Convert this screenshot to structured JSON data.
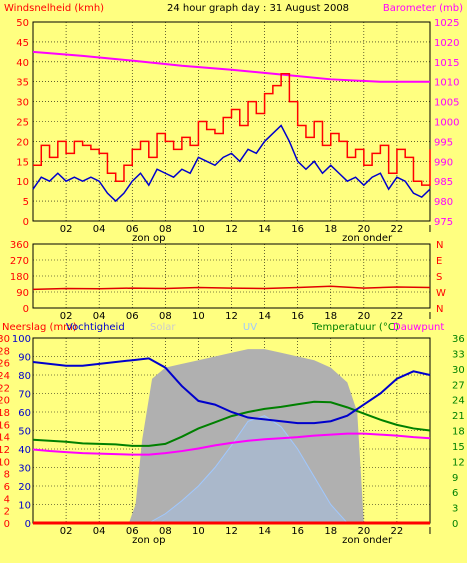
{
  "colors": {
    "background": "#ffff80",
    "plot": "#ffff80",
    "wind_max": "#ff0000",
    "wind_avg": "#0000cc",
    "barometer": "#ff00ff",
    "direction": "#e00000",
    "humidity": "#0000cc",
    "temperature": "#008000",
    "dewpoint": "#ff00ff",
    "solar": "#b0b0b0",
    "uv": "#a0c8ff",
    "rain": "#ff0000"
  },
  "chart_data": [
    {
      "type": "line",
      "title": "24 hour graph day : 31 August 2008",
      "left_axis_label": "Windsnelheid (kmh)",
      "right_axis_label": "Barometer (mb)",
      "left_ticks": [
        "0",
        "5",
        "10",
        "15",
        "20",
        "25",
        "30",
        "35",
        "40",
        "45",
        "50"
      ],
      "right_ticks": [
        "975",
        "980",
        "985",
        "990",
        "995",
        "1000",
        "1005",
        "1010",
        "1015",
        "1020",
        "1025"
      ],
      "ylim_left": [
        0,
        50
      ],
      "ylim_right": [
        975,
        1025
      ],
      "x_ticks": [
        "02",
        "04",
        "06",
        "08",
        "10",
        "12",
        "14",
        "16",
        "18",
        "20",
        "22",
        "I"
      ],
      "annotations": [
        "zon op",
        "zon onder"
      ],
      "series": [
        {
          "key": "wind_max",
          "axis": "left",
          "x": [
            0,
            0.5,
            1,
            1.5,
            2,
            2.5,
            3,
            3.5,
            4,
            4.5,
            5,
            5.5,
            6,
            6.5,
            7,
            7.5,
            8,
            8.5,
            9,
            9.5,
            10,
            10.5,
            11,
            11.5,
            12,
            12.5,
            13,
            13.5,
            14,
            14.5,
            15,
            15.5,
            16,
            16.5,
            17,
            17.5,
            18,
            18.5,
            19,
            19.5,
            20,
            20.5,
            21,
            21.5,
            22,
            22.5,
            23,
            23.5,
            24
          ],
          "values": [
            14,
            19,
            16,
            20,
            17,
            20,
            19,
            18,
            17,
            12,
            10,
            14,
            18,
            20,
            16,
            22,
            20,
            18,
            21,
            19,
            25,
            23,
            22,
            26,
            28,
            24,
            30,
            27,
            32,
            34,
            37,
            30,
            24,
            21,
            25,
            19,
            22,
            20,
            16,
            18,
            14,
            17,
            19,
            12,
            18,
            16,
            10,
            9,
            18
          ]
        },
        {
          "key": "wind_avg",
          "axis": "left",
          "x": [
            0,
            0.5,
            1,
            1.5,
            2,
            2.5,
            3,
            3.5,
            4,
            4.5,
            5,
            5.5,
            6,
            6.5,
            7,
            7.5,
            8,
            8.5,
            9,
            9.5,
            10,
            10.5,
            11,
            11.5,
            12,
            12.5,
            13,
            13.5,
            14,
            14.5,
            15,
            15.5,
            16,
            16.5,
            17,
            17.5,
            18,
            18.5,
            19,
            19.5,
            20,
            20.5,
            21,
            21.5,
            22,
            22.5,
            23,
            23.5,
            24
          ],
          "values": [
            8,
            11,
            10,
            12,
            10,
            11,
            10,
            11,
            10,
            7,
            5,
            7,
            10,
            12,
            9,
            13,
            12,
            11,
            13,
            12,
            16,
            15,
            14,
            16,
            17,
            15,
            18,
            17,
            20,
            22,
            24,
            20,
            15,
            13,
            15,
            12,
            14,
            12,
            10,
            11,
            9,
            11,
            12,
            8,
            11,
            10,
            7,
            6,
            8
          ]
        },
        {
          "key": "barometer",
          "axis": "right",
          "x": [
            0,
            3,
            6,
            9,
            12,
            15,
            18,
            21,
            24
          ],
          "values": [
            1017.5,
            1016.5,
            1015.3,
            1014,
            1013,
            1011.8,
            1010.6,
            1010,
            1010
          ]
        }
      ]
    },
    {
      "type": "line",
      "left_ticks": [
        "0",
        "90",
        "180",
        "270",
        "360"
      ],
      "right_ticks": [
        "N",
        "W",
        "S",
        "E",
        "N"
      ],
      "ylim": [
        0,
        360
      ],
      "x_ticks": [
        "02",
        "04",
        "06",
        "08",
        "10",
        "12",
        "14",
        "16",
        "18",
        "20",
        "22",
        "I"
      ],
      "series": [
        {
          "key": "direction",
          "x": [
            0,
            2,
            4,
            6,
            8,
            10,
            12,
            14,
            16,
            18,
            20,
            22,
            24
          ],
          "values": [
            105,
            110,
            108,
            112,
            110,
            115,
            112,
            110,
            115,
            122,
            112,
            118,
            115
          ]
        }
      ]
    },
    {
      "type": "area",
      "labels": {
        "rain": "Neerslag (mm)",
        "humidity": "Vochtigheid",
        "solar": "Solar",
        "uv": "UV",
        "temperature": "Temperatuur (°C)",
        "dewpoint": "Dauwpunt"
      },
      "left_ticks_rain": [
        "0",
        "2",
        "4",
        "6",
        "8",
        "10",
        "12",
        "14",
        "16",
        "18",
        "20",
        "22",
        "24",
        "26",
        "28",
        "30"
      ],
      "left_ticks_hum": [
        "0",
        "10",
        "20",
        "30",
        "40",
        "50",
        "60",
        "70",
        "80",
        "90",
        "100"
      ],
      "right_ticks_temp": [
        "0",
        "3",
        "6",
        "9",
        "12",
        "15",
        "18",
        "21",
        "24",
        "27",
        "30",
        "33",
        "36"
      ],
      "ylim_rain": [
        0,
        30
      ],
      "ylim_hum": [
        0,
        100
      ],
      "ylim_temp": [
        0,
        36
      ],
      "x_ticks": [
        "02",
        "04",
        "06",
        "08",
        "10",
        "12",
        "14",
        "16",
        "18",
        "20",
        "22",
        "I"
      ],
      "annotations": [
        "zon op",
        "zon onder"
      ],
      "series": [
        {
          "key": "humidity",
          "axis": "hum",
          "x": [
            0,
            1,
            2,
            3,
            4,
            5,
            6,
            7,
            8,
            9,
            10,
            11,
            12,
            13,
            14,
            15,
            16,
            17,
            18,
            19,
            20,
            21,
            22,
            23,
            24
          ],
          "values": [
            87,
            86,
            85,
            85,
            86,
            87,
            88,
            89,
            84,
            74,
            66,
            64,
            60,
            57,
            56,
            55,
            54,
            54,
            55,
            58,
            64,
            70,
            78,
            82,
            80
          ]
        },
        {
          "key": "temperature",
          "axis": "temp",
          "x": [
            0,
            1,
            2,
            3,
            4,
            5,
            6,
            7,
            8,
            9,
            10,
            11,
            12,
            13,
            14,
            15,
            16,
            17,
            18,
            19,
            20,
            21,
            22,
            23,
            24
          ],
          "values": [
            16.2,
            16,
            15.8,
            15.5,
            15.4,
            15.3,
            15,
            15,
            15.4,
            16.8,
            18.4,
            19.6,
            20.8,
            21.6,
            22.2,
            22.6,
            23.1,
            23.6,
            23.5,
            22.5,
            21.3,
            20.1,
            19.1,
            18.4,
            18
          ]
        },
        {
          "key": "dewpoint",
          "axis": "temp",
          "x": [
            0,
            1,
            2,
            3,
            4,
            5,
            6,
            7,
            8,
            9,
            10,
            11,
            12,
            13,
            14,
            15,
            16,
            17,
            18,
            19,
            20,
            21,
            22,
            23,
            24
          ],
          "values": [
            14.3,
            14,
            13.8,
            13.6,
            13.5,
            13.4,
            13.3,
            13.3,
            13.6,
            14,
            14.5,
            15.1,
            15.6,
            16,
            16.3,
            16.5,
            16.7,
            17,
            17.2,
            17.4,
            17.4,
            17.2,
            17,
            16.7,
            16.5
          ]
        },
        {
          "key": "solar",
          "axis": "hum",
          "x": [
            0,
            5.8,
            6.2,
            6.6,
            7.2,
            8,
            9,
            10,
            11,
            12,
            13,
            14,
            15,
            16,
            17,
            18,
            19,
            19.6,
            20,
            24
          ],
          "values": [
            0,
            0,
            10,
            45,
            78,
            84,
            86,
            88,
            90,
            92,
            94,
            94,
            92,
            90,
            88,
            84,
            76,
            60,
            0,
            0
          ]
        },
        {
          "key": "uv",
          "axis": "hum",
          "x": [
            0,
            7,
            8,
            9,
            10,
            11,
            12,
            13,
            14,
            15,
            16,
            17,
            18,
            19,
            24
          ],
          "values": [
            0,
            0,
            5,
            12,
            20,
            30,
            42,
            55,
            58,
            52,
            40,
            25,
            10,
            0,
            0
          ]
        },
        {
          "key": "rain",
          "axis": "rain",
          "x": [
            0,
            24
          ],
          "values": [
            0,
            0
          ]
        }
      ]
    }
  ]
}
